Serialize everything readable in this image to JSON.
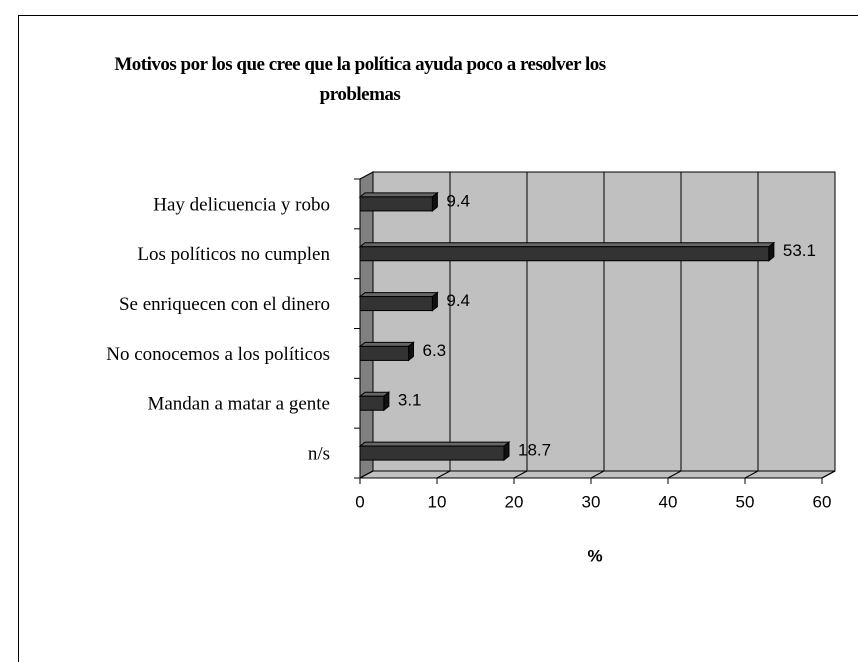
{
  "chart_data": {
    "type": "bar",
    "orientation": "horizontal",
    "title": "Motivos por los que cree que la política ayuda poco a resolver los problemas",
    "categories": [
      "Hay delicuencia y robo",
      "Los políticos no cumplen",
      "Se enriquecen con el dinero",
      "No conocemos a los políticos",
      "Mandan a matar a gente",
      "n/s"
    ],
    "values": [
      9.4,
      53.1,
      9.4,
      6.3,
      3.1,
      18.7
    ],
    "color": "#333333",
    "xlabel": "%",
    "xlim": [
      0,
      60
    ],
    "xticks": [
      0,
      10,
      20,
      30,
      40,
      50,
      60
    ],
    "grid": true
  }
}
